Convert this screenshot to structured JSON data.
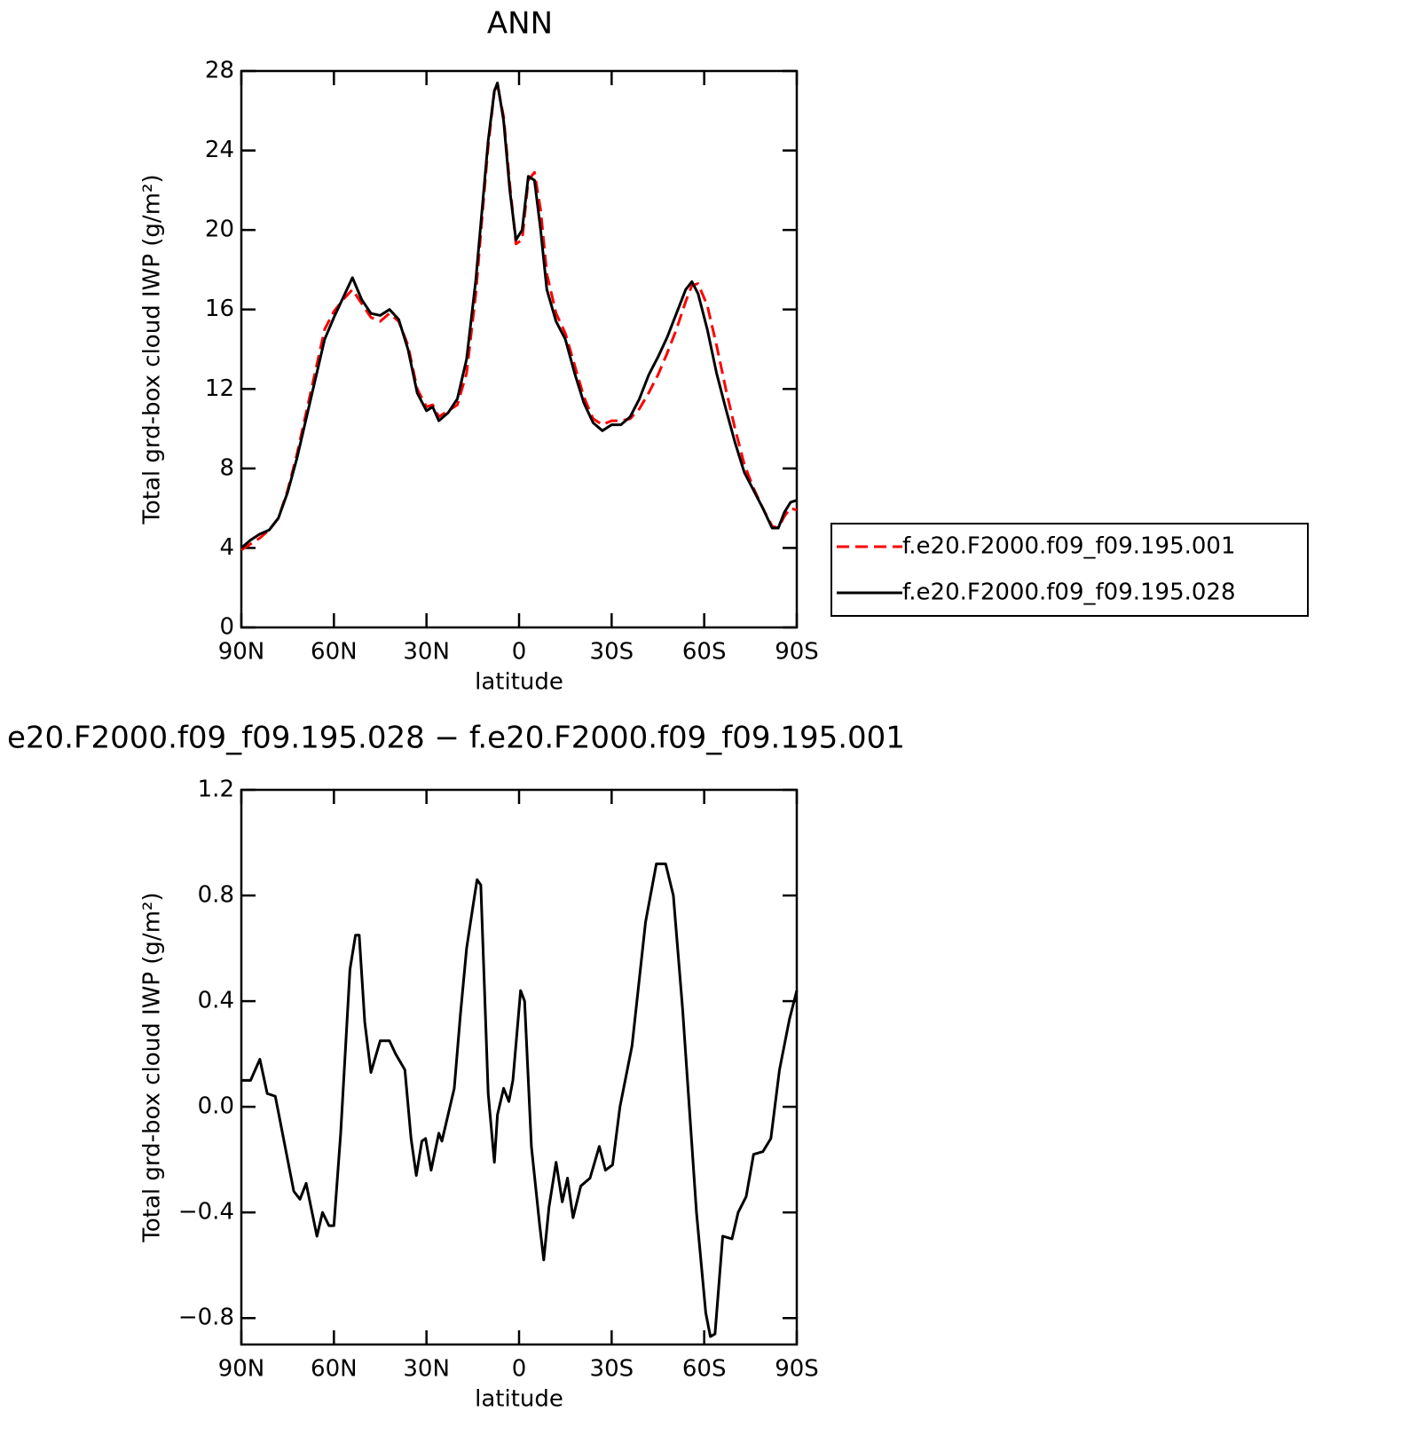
{
  "chart_data": [
    {
      "type": "line",
      "title": "ANN",
      "xlabel": "latitude",
      "ylabel": "Total grd-box cloud IWP (g/m²)",
      "xlim": [
        90,
        -90
      ],
      "xticks": [
        {
          "value": 90,
          "label": "90N"
        },
        {
          "value": 60,
          "label": "60N"
        },
        {
          "value": 30,
          "label": "30N"
        },
        0,
        {
          "value": -30,
          "label": "30S"
        },
        {
          "value": -60,
          "label": "60S"
        },
        {
          "value": -90,
          "label": "90S"
        }
      ],
      "ylim": [
        0,
        28
      ],
      "yticks": [
        0,
        4,
        8,
        12,
        16,
        20,
        24,
        28
      ],
      "legend": "right",
      "x": [
        90,
        87,
        84,
        81,
        78,
        75,
        72,
        69,
        66,
        63,
        60,
        57,
        54,
        51,
        48,
        45,
        42,
        39,
        36,
        33,
        30,
        28,
        26,
        23,
        20,
        17,
        14,
        12,
        10,
        8,
        7,
        5,
        3,
        1,
        -1,
        -3,
        -5,
        -7,
        -9,
        -12,
        -15,
        -18,
        -21,
        -24,
        -27,
        -30,
        -33,
        -36,
        -39,
        -42,
        -45,
        -48,
        -51,
        -54,
        -56,
        -58,
        -61,
        -64,
        -67,
        -70,
        -73,
        -76,
        -79,
        -82,
        -84,
        -86,
        -88,
        -90
      ],
      "series": [
        {
          "name": "f.e20.F2000.f09_f09.195.001",
          "color": "#ff0000",
          "linestyle": "dashed",
          "values": [
            3.9,
            4.2,
            4.5,
            4.9,
            5.5,
            6.9,
            8.7,
            10.8,
            12.9,
            15.0,
            15.9,
            16.5,
            17.0,
            16.3,
            15.6,
            15.4,
            15.8,
            15.4,
            14.2,
            12.0,
            11.1,
            11.2,
            10.6,
            10.9,
            11.2,
            12.8,
            16.8,
            20.6,
            24.2,
            27.0,
            27.3,
            25.7,
            22.3,
            19.3,
            19.5,
            22.5,
            22.9,
            21.0,
            17.8,
            15.8,
            14.8,
            13.2,
            11.6,
            10.5,
            10.2,
            10.4,
            10.4,
            10.5,
            11.0,
            11.8,
            12.7,
            13.8,
            15.0,
            16.4,
            17.2,
            17.3,
            16.2,
            14.2,
            12.0,
            10.0,
            8.2,
            7.0,
            6.0,
            5.1,
            5.0,
            5.6,
            6.0,
            5.9
          ]
        },
        {
          "name": "f.e20.F2000.f09_f09.195.028",
          "color": "#000000",
          "linestyle": "solid",
          "values": [
            4.0,
            4.4,
            4.7,
            4.9,
            5.5,
            6.8,
            8.5,
            10.5,
            12.5,
            14.5,
            15.6,
            16.6,
            17.6,
            16.5,
            15.8,
            15.7,
            16.0,
            15.5,
            14.0,
            11.8,
            10.9,
            11.1,
            10.4,
            10.8,
            11.5,
            13.5,
            17.5,
            21.0,
            24.5,
            27.0,
            27.4,
            25.5,
            22.0,
            19.5,
            20.0,
            22.7,
            22.5,
            20.0,
            17.0,
            15.4,
            14.5,
            12.8,
            11.3,
            10.3,
            9.9,
            10.2,
            10.2,
            10.6,
            11.5,
            12.7,
            13.6,
            14.6,
            15.8,
            17.0,
            17.4,
            16.8,
            15.0,
            12.8,
            11.0,
            9.3,
            7.8,
            6.9,
            6.0,
            5.0,
            5.0,
            5.8,
            6.3,
            6.4
          ]
        }
      ]
    },
    {
      "type": "line",
      "title": "e20.F2000.f09_f09.195.028 − f.e20.F2000.f09_f09.195.001",
      "xlabel": "latitude",
      "ylabel": "Total grd-box cloud IWP (g/m²)",
      "xlim": [
        90,
        -90
      ],
      "xticks": [
        {
          "value": 90,
          "label": "90N"
        },
        {
          "value": 60,
          "label": "60N"
        },
        {
          "value": 30,
          "label": "30N"
        },
        0,
        {
          "value": -30,
          "label": "30S"
        },
        {
          "value": -60,
          "label": "60S"
        },
        {
          "value": -90,
          "label": "90S"
        }
      ],
      "ylim": [
        -0.9,
        1.2
      ],
      "yticks": [
        {
          "value": -0.8,
          "label": "−0.8"
        },
        {
          "value": -0.4,
          "label": "−0.4"
        },
        {
          "value": 0,
          "label": "0.0"
        },
        0.4,
        0.8,
        1.2
      ],
      "x": [
        90,
        87,
        84,
        81.6,
        79,
        77,
        73,
        71,
        69,
        65.5,
        63.7,
        61.6,
        60,
        57.8,
        54.8,
        53,
        51.8,
        50,
        48,
        45,
        42,
        40,
        37,
        35,
        33.3,
        31.5,
        30.3,
        28.5,
        26,
        25,
        21,
        19,
        17,
        14.8,
        13.6,
        12.4,
        10,
        8,
        7,
        5,
        3.3,
        2,
        -0.5,
        -1.8,
        -4,
        -6.7,
        -8,
        -9.7,
        -12,
        -14,
        -15.7,
        -17.5,
        -20,
        -23,
        -26,
        -28,
        -30.3,
        -32.7,
        -36.6,
        -41,
        -44.5,
        -47.5,
        -50,
        -53,
        -57.5,
        -60.5,
        -62,
        -63.5,
        -66,
        -69,
        -71,
        -73.6,
        -76,
        -79,
        -81.6,
        -84.4,
        -87.6,
        -90
      ],
      "series": [
        {
          "color": "#000000",
          "linestyle": "solid",
          "values": [
            0.1,
            0.1,
            0.18,
            0.05,
            0.04,
            -0.08,
            -0.32,
            -0.35,
            -0.29,
            -0.49,
            -0.4,
            -0.45,
            -0.45,
            -0.1,
            0.52,
            0.65,
            0.65,
            0.32,
            0.13,
            0.25,
            0.25,
            0.2,
            0.14,
            -0.12,
            -0.26,
            -0.13,
            -0.12,
            -0.24,
            -0.1,
            -0.13,
            0.07,
            0.35,
            0.6,
            0.77,
            0.86,
            0.84,
            0.05,
            -0.21,
            -0.03,
            0.07,
            0.02,
            0.1,
            0.44,
            0.4,
            -0.15,
            -0.45,
            -0.58,
            -0.38,
            -0.21,
            -0.36,
            -0.27,
            -0.42,
            -0.3,
            -0.27,
            -0.15,
            -0.24,
            -0.22,
            0.0,
            0.23,
            0.7,
            0.92,
            0.92,
            0.8,
            0.37,
            -0.4,
            -0.78,
            -0.87,
            -0.86,
            -0.49,
            -0.5,
            -0.4,
            -0.34,
            -0.18,
            -0.17,
            -0.12,
            0.14,
            0.33,
            0.44
          ]
        }
      ]
    }
  ]
}
